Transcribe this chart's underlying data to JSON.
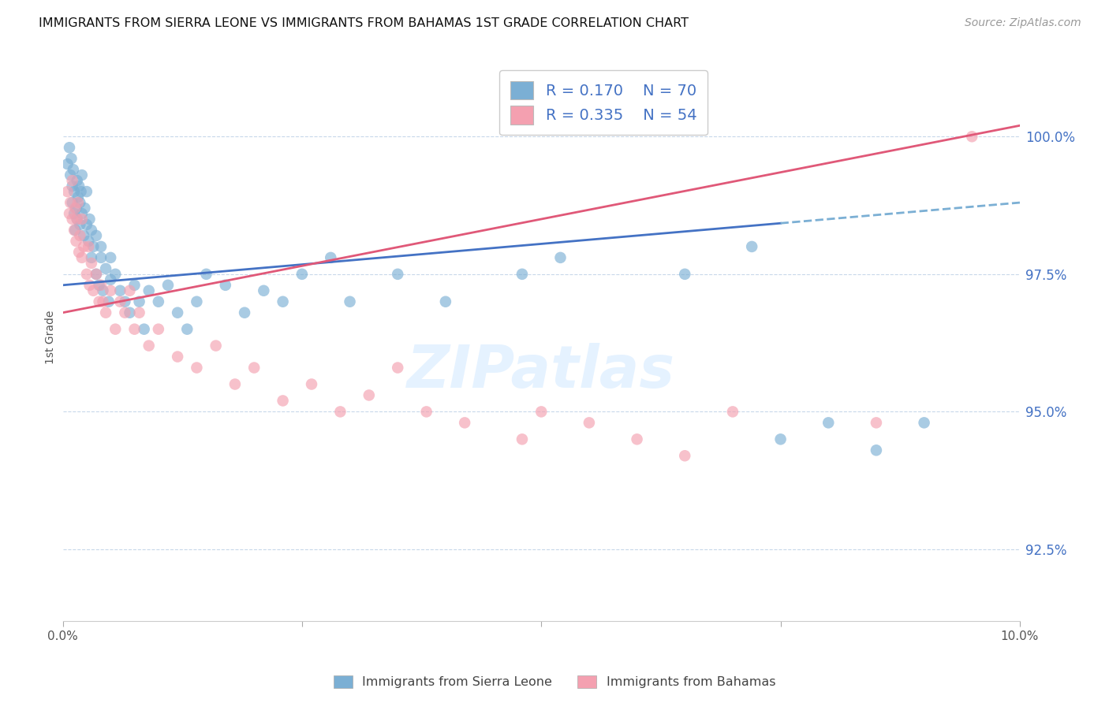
{
  "title": "IMMIGRANTS FROM SIERRA LEONE VS IMMIGRANTS FROM BAHAMAS 1ST GRADE CORRELATION CHART",
  "source": "Source: ZipAtlas.com",
  "ylabel": "1st Grade",
  "yticks": [
    92.5,
    95.0,
    97.5,
    100.0
  ],
  "ytick_labels": [
    "92.5%",
    "95.0%",
    "97.5%",
    "100.0%"
  ],
  "xlim": [
    0.0,
    10.0
  ],
  "ylim": [
    91.2,
    101.5
  ],
  "sierra_leone_color": "#7bafd4",
  "bahamas_color": "#f4a0b0",
  "sierra_leone_line_color": "#4472c4",
  "bahamas_line_color": "#e05878",
  "sierra_leone_R": 0.17,
  "sierra_leone_N": 70,
  "bahamas_R": 0.335,
  "bahamas_N": 54,
  "legend_text_color": "#4472c4",
  "axis_label_color": "#4472c4",
  "sl_line_x0": 0.0,
  "sl_line_y0": 97.3,
  "sl_line_x1": 10.0,
  "sl_line_y1": 98.8,
  "sl_solid_end": 7.5,
  "bah_line_x0": 0.0,
  "bah_line_y0": 96.8,
  "bah_line_x1": 10.0,
  "bah_line_y1": 100.2,
  "sierra_leone_points_x": [
    0.05,
    0.07,
    0.08,
    0.09,
    0.1,
    0.1,
    0.11,
    0.12,
    0.12,
    0.13,
    0.14,
    0.15,
    0.15,
    0.16,
    0.17,
    0.18,
    0.18,
    0.19,
    0.2,
    0.2,
    0.22,
    0.23,
    0.25,
    0.25,
    0.27,
    0.28,
    0.3,
    0.3,
    0.32,
    0.35,
    0.35,
    0.38,
    0.4,
    0.4,
    0.42,
    0.45,
    0.48,
    0.5,
    0.5,
    0.55,
    0.6,
    0.65,
    0.7,
    0.75,
    0.8,
    0.85,
    0.9,
    1.0,
    1.1,
    1.2,
    1.3,
    1.4,
    1.5,
    1.7,
    1.9,
    2.1,
    2.3,
    2.5,
    2.8,
    3.0,
    3.5,
    4.0,
    4.8,
    5.2,
    6.5,
    7.2,
    7.5,
    8.0,
    8.5,
    9.0
  ],
  "sierra_leone_points_y": [
    99.5,
    99.8,
    99.3,
    99.6,
    99.1,
    98.8,
    99.4,
    98.6,
    99.0,
    98.3,
    98.7,
    99.2,
    98.5,
    98.9,
    99.1,
    98.4,
    98.8,
    99.0,
    98.6,
    99.3,
    98.2,
    98.7,
    99.0,
    98.4,
    98.1,
    98.5,
    97.8,
    98.3,
    98.0,
    97.5,
    98.2,
    97.3,
    97.8,
    98.0,
    97.2,
    97.6,
    97.0,
    97.4,
    97.8,
    97.5,
    97.2,
    97.0,
    96.8,
    97.3,
    97.0,
    96.5,
    97.2,
    97.0,
    97.3,
    96.8,
    96.5,
    97.0,
    97.5,
    97.3,
    96.8,
    97.2,
    97.0,
    97.5,
    97.8,
    97.0,
    97.5,
    97.0,
    97.5,
    97.8,
    97.5,
    98.0,
    94.5,
    94.8,
    94.3,
    94.8
  ],
  "bahamas_points_x": [
    0.05,
    0.07,
    0.08,
    0.1,
    0.1,
    0.12,
    0.13,
    0.14,
    0.15,
    0.16,
    0.17,
    0.18,
    0.2,
    0.2,
    0.22,
    0.25,
    0.27,
    0.28,
    0.3,
    0.32,
    0.35,
    0.38,
    0.4,
    0.42,
    0.45,
    0.5,
    0.55,
    0.6,
    0.65,
    0.7,
    0.75,
    0.8,
    0.9,
    1.0,
    1.2,
    1.4,
    1.6,
    1.8,
    2.0,
    2.3,
    2.6,
    2.9,
    3.2,
    3.5,
    3.8,
    4.2,
    4.8,
    5.0,
    5.5,
    6.0,
    6.5,
    7.0,
    8.5,
    9.5
  ],
  "bahamas_points_y": [
    99.0,
    98.6,
    98.8,
    99.2,
    98.5,
    98.3,
    98.7,
    98.1,
    98.5,
    98.8,
    97.9,
    98.2,
    98.5,
    97.8,
    98.0,
    97.5,
    98.0,
    97.3,
    97.7,
    97.2,
    97.5,
    97.0,
    97.3,
    97.0,
    96.8,
    97.2,
    96.5,
    97.0,
    96.8,
    97.2,
    96.5,
    96.8,
    96.2,
    96.5,
    96.0,
    95.8,
    96.2,
    95.5,
    95.8,
    95.2,
    95.5,
    95.0,
    95.3,
    95.8,
    95.0,
    94.8,
    94.5,
    95.0,
    94.8,
    94.5,
    94.2,
    95.0,
    94.8,
    100.0
  ]
}
